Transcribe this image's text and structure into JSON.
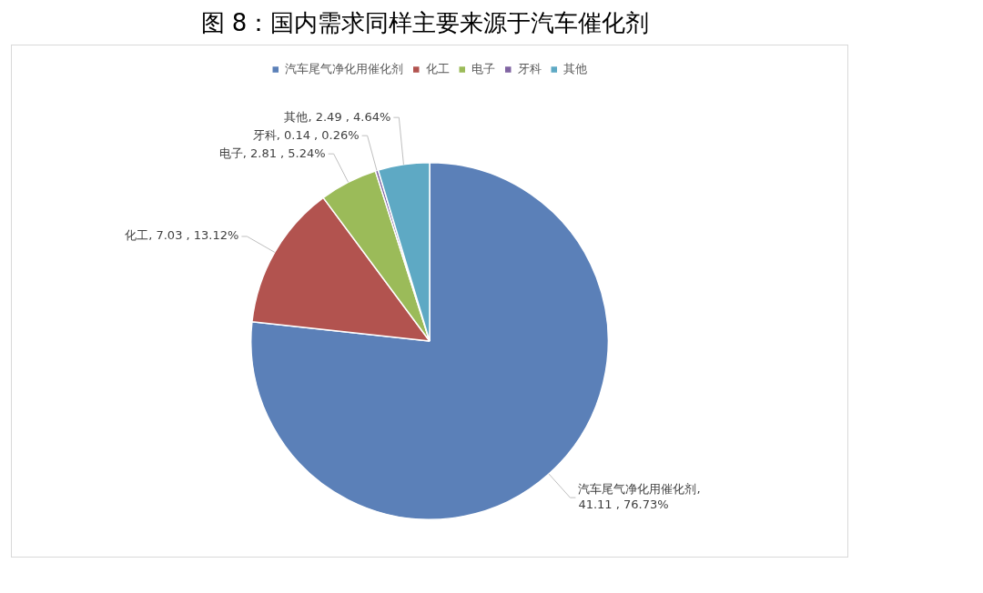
{
  "chart_data": {
    "type": "pie",
    "title": "图 8：国内需求同样主要来源于汽车催化剂",
    "categories": [
      "汽车尾气净化用催化剂",
      "化工",
      "电子",
      "牙科",
      "其他"
    ],
    "values": [
      41.11,
      7.03,
      2.81,
      0.14,
      2.49
    ],
    "value_labels": [
      ", 41.11 , 76.73%",
      ", 7.03 , 13.12%",
      ", 2.81 , 5.24%",
      ", 0.14 , 0.26%",
      ", 2.49 , 4.64%"
    ],
    "colors": [
      "#5b80b8",
      "#b2534f",
      "#9bbb59",
      "#8064a2",
      "#5ea9c4"
    ],
    "legend": "top"
  }
}
